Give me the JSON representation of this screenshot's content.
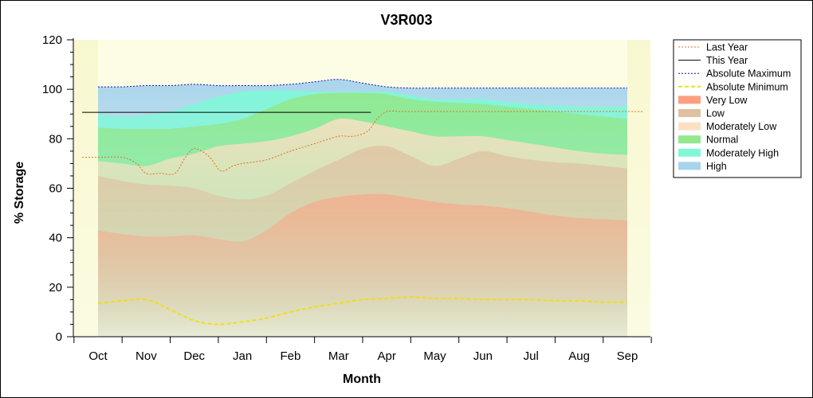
{
  "chart_data": {
    "type": "area",
    "title": "V3R003",
    "xlabel": "Month",
    "ylabel": "% Storage",
    "ylim": [
      0,
      120
    ],
    "yticks": [
      0,
      20,
      40,
      60,
      80,
      100,
      120
    ],
    "categories": [
      "Oct",
      "Nov",
      "Dec",
      "Jan",
      "Feb",
      "Mar",
      "Apr",
      "May",
      "Jun",
      "Jul",
      "Aug",
      "Sep"
    ],
    "x": [
      0,
      0.5,
      1,
      1.5,
      2,
      2.5,
      3,
      3.5,
      4,
      4.5,
      5,
      5.5,
      6,
      6.5,
      7,
      7.5,
      8,
      8.5,
      9,
      9.5,
      10,
      10.5,
      11
    ],
    "legend_position": "top-right",
    "grid": false,
    "bands": [
      {
        "name": "Very Low",
        "color": "#ff9f80",
        "values": [
          43,
          41.5,
          40.5,
          40.5,
          41,
          39.5,
          38.5,
          43,
          50,
          54.5,
          56.5,
          57.5,
          57.5,
          56,
          54.5,
          53.5,
          53,
          52,
          50.5,
          49,
          48,
          47.5,
          47
        ]
      },
      {
        "name": "Low",
        "color": "#dfc0a0",
        "values": [
          65,
          63,
          61.5,
          61,
          60,
          57,
          55.5,
          57,
          62,
          67,
          71.5,
          76,
          77,
          73,
          69,
          72,
          75,
          73,
          71.5,
          70.5,
          70,
          69,
          68
        ]
      },
      {
        "name": "Moderately Low",
        "color": "#fde0c4",
        "values": [
          71,
          70,
          69,
          72,
          74,
          77,
          78,
          79,
          81,
          84,
          88,
          87,
          85,
          83,
          81,
          81,
          81,
          79.5,
          78,
          76.5,
          75,
          74,
          73.5
        ]
      },
      {
        "name": "Normal",
        "color": "#92e88e",
        "values": [
          84.5,
          84,
          84,
          84,
          85,
          86,
          88,
          92,
          96,
          98,
          98.5,
          98.5,
          98,
          96,
          95,
          94.5,
          94,
          93,
          92,
          91,
          90,
          89,
          88
        ]
      },
      {
        "name": "Moderately High",
        "color": "#80f8d8",
        "values": [
          90,
          89,
          89.5,
          91,
          94,
          97,
          99,
          99.5,
          99.5,
          99,
          99,
          99,
          99,
          97.5,
          96,
          96,
          96,
          95,
          94,
          93.5,
          93,
          93,
          93
        ]
      },
      {
        "name": "High",
        "color": "#a8d4ec",
        "values": [
          101,
          101,
          101.5,
          101.5,
          102,
          101.5,
          101.5,
          101.5,
          102,
          103,
          104,
          102.5,
          101,
          100.5,
          100.5,
          100.5,
          100.5,
          100.5,
          100.5,
          100.5,
          100.5,
          100.5,
          100.5
        ]
      }
    ],
    "series": [
      {
        "name": "Last Year",
        "color": "#e07020",
        "style": "dotted",
        "x": [
          -0.33,
          0,
          0.5,
          0.8,
          1,
          1.3,
          1.6,
          1.8,
          2,
          2.3,
          2.55,
          2.8,
          3,
          3.5,
          4,
          4.5,
          5,
          5.3,
          5.6,
          5.8,
          6,
          6.3,
          6.6,
          7,
          8,
          9,
          10,
          11,
          11.33
        ],
        "values": [
          72.5,
          72.5,
          72.5,
          70,
          66,
          66,
          66,
          72,
          76,
          73,
          67,
          69,
          70,
          71.5,
          75,
          78,
          81,
          81,
          83,
          88,
          91,
          91,
          91,
          91,
          91,
          91,
          91,
          91,
          91
        ]
      },
      {
        "name": "This Year",
        "color": "#000000",
        "style": "solid",
        "x": [
          -0.33,
          5.67
        ],
        "values": [
          90.7,
          90.7
        ]
      },
      {
        "name": "Absolute Maximum",
        "color": "#1010c0",
        "style": "dotted",
        "values": [
          101,
          101,
          101.5,
          101.5,
          102,
          101.5,
          101.5,
          101.5,
          102,
          103,
          104,
          102.5,
          101,
          100.5,
          100.5,
          100.5,
          100.5,
          100.5,
          100.5,
          100.5,
          100.5,
          100.5,
          100.5
        ]
      },
      {
        "name": "Absolute Minimum",
        "color": "#f0e010",
        "style": "dashed",
        "values": [
          13.5,
          14.5,
          15,
          11,
          6.5,
          5,
          6,
          7.5,
          10,
          12,
          13.5,
          15,
          15.5,
          16,
          15.5,
          15.5,
          15,
          15,
          15,
          14.5,
          14.5,
          14,
          14
        ]
      }
    ]
  }
}
